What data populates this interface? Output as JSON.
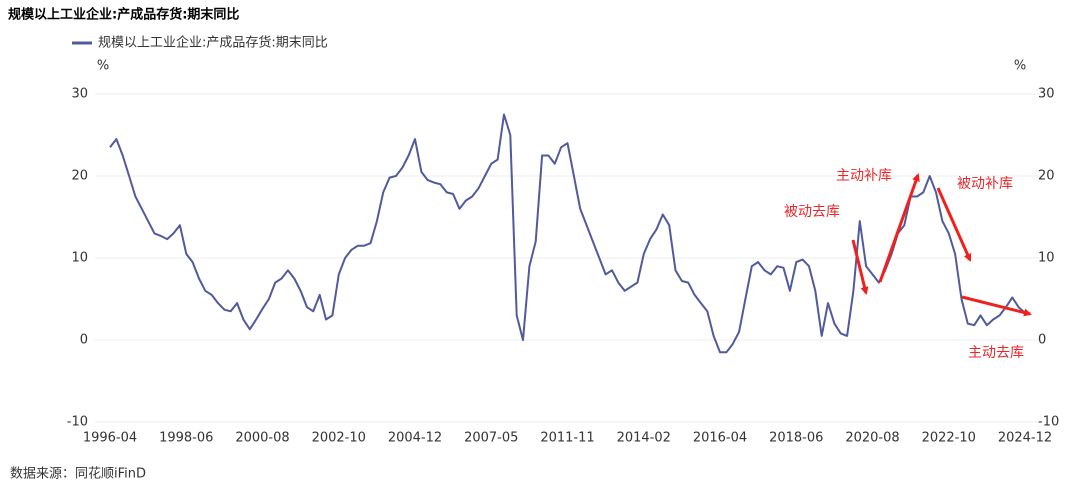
{
  "chart_data": {
    "type": "line",
    "title": "规模以上工业企业:产成品存货:期末同比",
    "source": "数据来源：同花顺iFinD",
    "y_label": "%",
    "y2_label": "%",
    "ylim": [
      -10,
      30
    ],
    "yticks": [
      -10,
      0,
      10,
      20,
      30
    ],
    "y2lim": [
      -10,
      30
    ],
    "y2ticks": [
      -10,
      0,
      10,
      20,
      30
    ],
    "grid": true,
    "legend": "top-left",
    "annotations": [
      "被动去库",
      "主动补库",
      "被动补库",
      "主动去库"
    ],
    "categories": [
      "1996-04",
      null,
      null,
      null,
      null,
      null,
      null,
      null,
      null,
      null,
      null,
      null,
      "1998-06",
      null,
      null,
      null,
      null,
      null,
      null,
      null,
      null,
      null,
      null,
      null,
      "2000-08",
      null,
      null,
      null,
      null,
      null,
      null,
      null,
      null,
      null,
      null,
      null,
      "2002-10",
      null,
      null,
      null,
      null,
      null,
      null,
      null,
      null,
      null,
      null,
      null,
      "2004-12",
      null,
      null,
      null,
      null,
      null,
      null,
      null,
      null,
      null,
      null,
      null,
      "2007-05",
      null,
      null,
      null,
      null,
      null,
      null,
      null,
      null,
      null,
      null,
      null,
      "2011-11",
      null,
      null,
      null,
      null,
      null,
      null,
      null,
      null,
      null,
      null,
      null,
      "2014-02",
      null,
      null,
      null,
      null,
      null,
      null,
      null,
      null,
      null,
      null,
      null,
      "2016-04",
      null,
      null,
      null,
      null,
      null,
      null,
      null,
      null,
      null,
      null,
      null,
      "2018-06",
      null,
      null,
      null,
      null,
      null,
      null,
      null,
      null,
      null,
      null,
      null,
      "2020-08",
      null,
      null,
      null,
      null,
      null,
      null,
      null,
      null,
      null,
      null,
      null,
      "2022-10",
      null,
      null,
      null,
      null,
      null,
      null,
      null,
      null,
      null,
      null,
      null,
      "2024-12"
    ],
    "series": [
      {
        "name": "规模以上工业企业:产成品存货:期末同比",
        "color": "#515a9c",
        "values": [
          23.5,
          24.5,
          22.5,
          20,
          17.5,
          16,
          14.5,
          13,
          12.7,
          12.3,
          13,
          14,
          10.5,
          9.5,
          7.5,
          6,
          5.5,
          4.5,
          3.7,
          3.5,
          4.5,
          2.5,
          1.3,
          2.5,
          3.8,
          5,
          7,
          7.5,
          8.5,
          7.5,
          6,
          4,
          3.5,
          5.5,
          2.5,
          3,
          8,
          10,
          11,
          11.5,
          11.5,
          11.8,
          14.5,
          18,
          19.8,
          20,
          21,
          22.5,
          24.5,
          20.5,
          19.5,
          19.2,
          19,
          18,
          17.8,
          16,
          17,
          17.5,
          18.5,
          20,
          21.5,
          22,
          27.5,
          25,
          3,
          0,
          9,
          12,
          22.5,
          22.5,
          21.5,
          23.5,
          24,
          20,
          16,
          14,
          12,
          10,
          8,
          8.5,
          7,
          6,
          6.5,
          7,
          10.5,
          12.3,
          13.5,
          15.3,
          14,
          8.5,
          7.2,
          7,
          5.5,
          4.5,
          3.5,
          0.5,
          -1.5,
          -1.5,
          -0.5,
          1,
          5,
          9,
          9.5,
          8.5,
          8,
          9,
          8.8,
          6,
          9.5,
          9.8,
          9,
          6,
          0.5,
          4.5,
          2,
          0.8,
          0.5,
          6,
          14.5,
          9,
          8,
          7,
          8.5,
          10.5,
          13,
          14,
          17.5,
          17.5,
          18,
          20,
          18,
          14.5,
          13,
          10.5,
          5,
          2,
          1.8,
          3,
          1.8,
          2.5,
          3,
          4,
          5.2,
          4,
          3.3
        ]
      }
    ]
  }
}
